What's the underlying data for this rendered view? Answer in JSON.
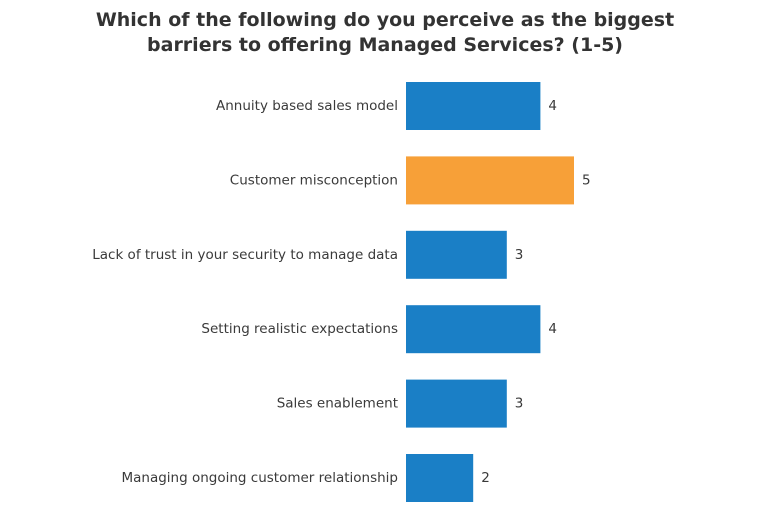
{
  "chart_data": {
    "type": "bar",
    "orientation": "horizontal",
    "title_lines": [
      "Which of the following do you perceive as the biggest",
      "barriers to offering Managed Services? (1-5)"
    ],
    "categories": [
      "Annuity based sales model",
      "Customer misconception",
      "Lack of trust in your security to manage data",
      "Setting realistic expectations",
      "Sales enablement",
      "Managing ongoing customer relationship"
    ],
    "values": [
      4,
      5,
      3,
      4,
      3,
      2
    ],
    "value_labels": [
      "4",
      "5",
      "3",
      "4",
      "3",
      "2"
    ],
    "highlight_index": 1,
    "xlim": [
      0,
      5
    ],
    "grid": false,
    "legend": "none",
    "colors": {
      "bar": "#1a7fc6",
      "highlight": "#f7a038",
      "text": "#3a3a3a"
    }
  }
}
